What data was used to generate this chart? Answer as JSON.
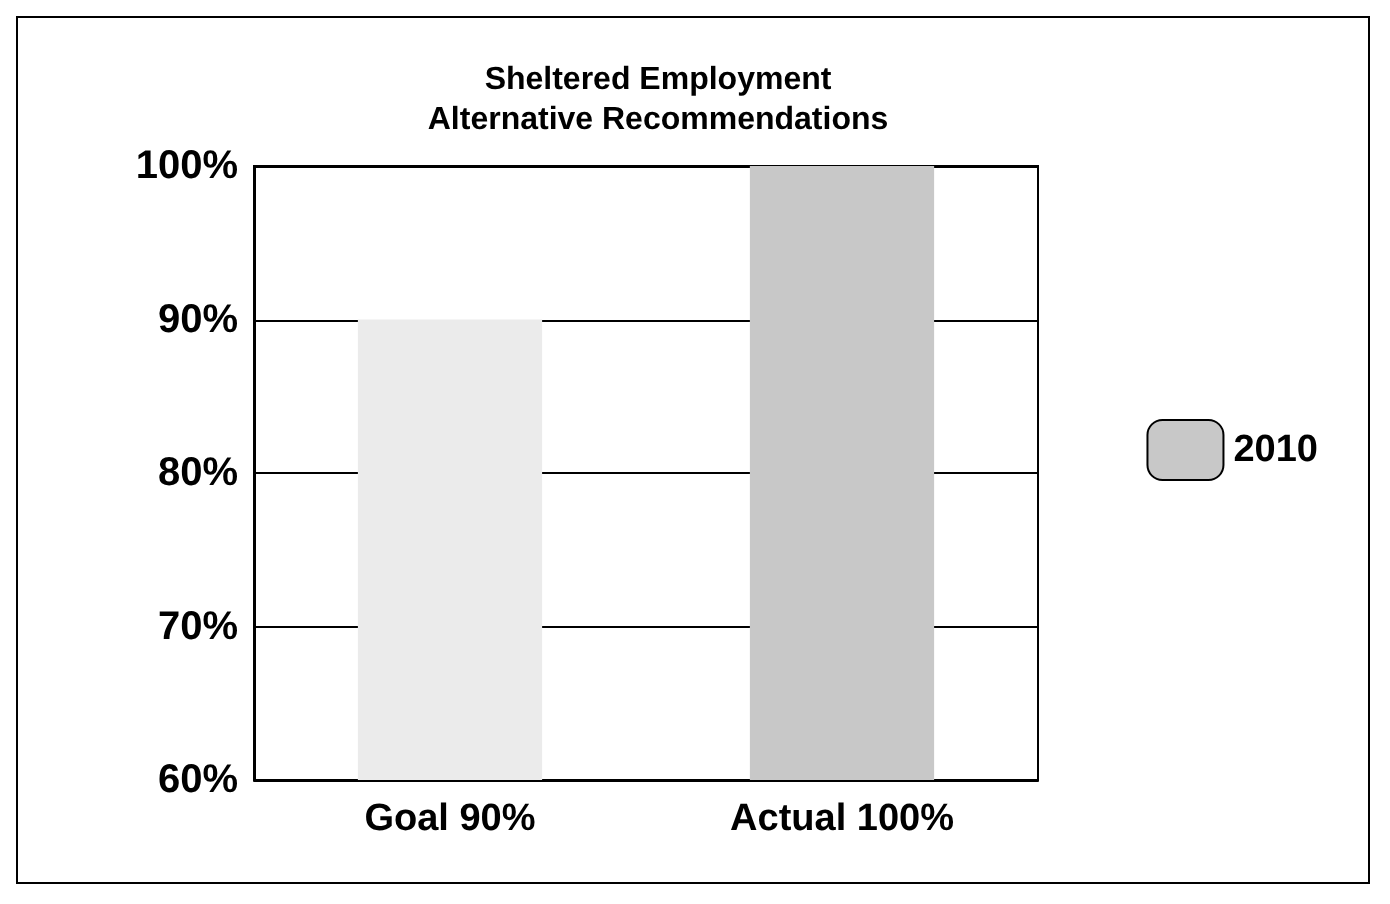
{
  "chart_data": {
    "type": "bar",
    "title": "Sheltered Employment\nAlternative Recommendations",
    "categories": [
      "Goal 90%",
      "Actual 100%"
    ],
    "series": [
      {
        "name": "2010",
        "color": "#c8c8c8",
        "colors": [
          "#ebebeb",
          "#c8c8c8"
        ],
        "values": [
          90,
          100
        ]
      }
    ],
    "ylim": [
      60,
      100
    ],
    "yticks": [
      {
        "value": 60,
        "label": "60%"
      },
      {
        "value": 70,
        "label": "70%"
      },
      {
        "value": 80,
        "label": "80%"
      },
      {
        "value": 90,
        "label": "90%"
      },
      {
        "value": 100,
        "label": "100%"
      }
    ],
    "grid": "y",
    "legend": "right"
  }
}
